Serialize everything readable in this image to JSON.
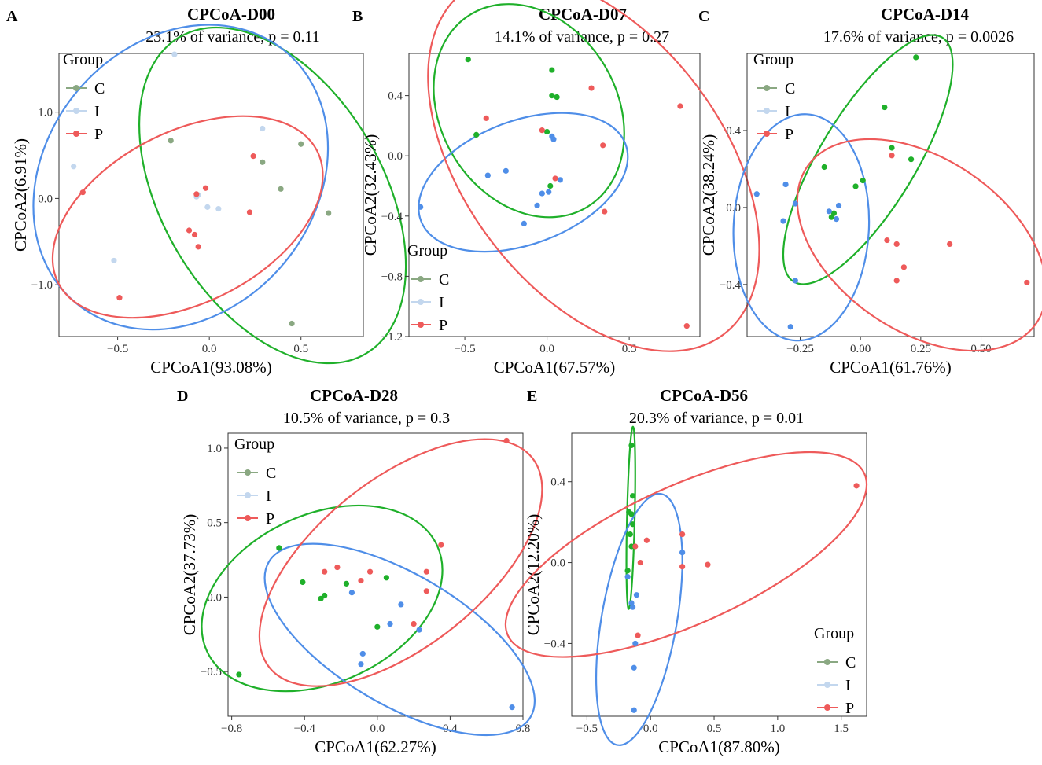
{
  "figure": {
    "colors": {
      "C": "#8aa882",
      "I": "#c3d7ee",
      "P": "#ee5a5a"
    },
    "ellipse_colors": {
      "C": "#1fb02a",
      "I": "#4f8ee8",
      "P": "#ee5a5a"
    },
    "legend_title": "Group",
    "legend_groups": [
      "C",
      "I",
      "P"
    ]
  },
  "chart_data": [
    {
      "type": "scatter",
      "panel": "A",
      "title": "CPCoA-D00",
      "subtitle": "23.1% of variance, p = 0.11",
      "xlabel": "CPCoA1(93.08%)",
      "ylabel": "CPCoA2(6.91%)",
      "xlim": [
        -0.82,
        0.84
      ],
      "ylim": [
        -1.6,
        1.68
      ],
      "xticks": [
        -0.5,
        0.0,
        0.5
      ],
      "xtick_labels": [
        "−0.5",
        "0.0",
        "0.5"
      ],
      "yticks": [
        -1.0,
        0.0,
        1.0
      ],
      "ytick_labels": [
        "−1.0",
        "0.0",
        "1.0"
      ],
      "legend_position": "top-left",
      "series": [
        {
          "name": "C",
          "ellipse": true,
          "x": [
            -0.21,
            0.5,
            0.29,
            0.39,
            0.65,
            0.45
          ],
          "y": [
            0.67,
            0.63,
            0.42,
            0.11,
            -0.17,
            -1.45
          ]
        },
        {
          "name": "I",
          "ellipse": true,
          "x": [
            -0.19,
            -0.74,
            0.29,
            -0.06,
            -0.07,
            -0.01,
            0.05,
            -0.52
          ],
          "y": [
            1.67,
            0.37,
            0.81,
            0.04,
            0.02,
            -0.1,
            -0.12,
            -0.72
          ]
        },
        {
          "name": "P",
          "ellipse": true,
          "x": [
            0.24,
            -0.69,
            -0.02,
            -0.07,
            0.22,
            -0.11,
            -0.08,
            -0.06,
            -0.49
          ],
          "y": [
            0.49,
            0.07,
            0.12,
            0.05,
            -0.16,
            -0.37,
            -0.42,
            -0.56,
            -1.15
          ]
        }
      ]
    },
    {
      "type": "scatter",
      "panel": "B",
      "title": "CPCoA-D07",
      "subtitle": "14.1% of variance, p = 0.27",
      "xlabel": "CPCoA1(67.57%)",
      "ylabel": "CPCoA2(32.43%)",
      "xlim": [
        -0.84,
        0.93
      ],
      "ylim": [
        -1.2,
        0.68
      ],
      "xticks": [
        -0.5,
        0.0,
        0.5
      ],
      "xtick_labels": [
        "−0.5",
        "0.0",
        "0.5"
      ],
      "yticks": [
        -1.2,
        -0.8,
        -0.4,
        0.0,
        0.4
      ],
      "ytick_labels": [
        "−1.2",
        "−0.8",
        "−0.4",
        "0.0",
        "0.4"
      ],
      "legend_position": "bottom-left",
      "series": [
        {
          "name": "C",
          "ellipse": true,
          "x": [
            -0.48,
            0.03,
            0.03,
            0.06,
            -0.43,
            0.0,
            0.02
          ],
          "y": [
            0.64,
            0.57,
            0.4,
            0.39,
            0.14,
            0.16,
            -0.2
          ]
        },
        {
          "name": "I",
          "ellipse": true,
          "x": [
            -0.77,
            -0.36,
            -0.25,
            -0.14,
            0.03,
            0.04,
            -0.03,
            0.01,
            0.08,
            -0.06
          ],
          "y": [
            -0.34,
            -0.13,
            -0.1,
            -0.45,
            0.13,
            0.11,
            -0.25,
            -0.24,
            -0.16,
            -0.33
          ]
        },
        {
          "name": "P",
          "ellipse": true,
          "x": [
            0.27,
            0.81,
            -0.37,
            -0.03,
            0.34,
            0.05,
            0.35,
            0.85
          ],
          "y": [
            0.45,
            0.33,
            0.25,
            0.17,
            0.07,
            -0.15,
            -0.37,
            -1.13
          ]
        }
      ]
    },
    {
      "type": "scatter",
      "panel": "C",
      "title": "CPCoA-D14",
      "subtitle": "17.6% of variance, p = 0.0026",
      "xlabel": "CPCoA1(61.76%)",
      "ylabel": "CPCoA2(38.24%)",
      "xlim": [
        -0.47,
        0.72
      ],
      "ylim": [
        -0.67,
        0.8
      ],
      "xticks": [
        -0.25,
        0.0,
        0.25,
        0.5
      ],
      "xtick_labels": [
        "−0.25",
        "0.00",
        "0.25",
        "0.50"
      ],
      "yticks": [
        -0.4,
        0.0,
        0.4
      ],
      "ytick_labels": [
        "−0.4",
        "0.0",
        "0.4"
      ],
      "legend_position": "top-left",
      "series": [
        {
          "name": "C",
          "ellipse": true,
          "x": [
            0.23,
            0.1,
            0.13,
            0.21,
            0.01,
            -0.02,
            -0.15,
            -0.11,
            -0.12
          ],
          "y": [
            0.78,
            0.52,
            0.31,
            0.25,
            0.14,
            0.11,
            0.21,
            -0.03,
            -0.05
          ]
        },
        {
          "name": "I",
          "ellipse": true,
          "x": [
            -0.43,
            -0.31,
            -0.27,
            -0.32,
            -0.09,
            -0.13,
            -0.1,
            -0.27,
            -0.29
          ],
          "y": [
            0.07,
            0.12,
            0.02,
            -0.07,
            0.01,
            -0.02,
            -0.06,
            -0.38,
            -0.62
          ]
        },
        {
          "name": "P",
          "ellipse": true,
          "x": [
            0.13,
            0.11,
            0.15,
            0.37,
            0.18,
            0.15,
            0.69
          ],
          "y": [
            0.27,
            -0.17,
            -0.19,
            -0.19,
            -0.31,
            -0.38,
            -0.39
          ]
        }
      ]
    },
    {
      "type": "scatter",
      "panel": "D",
      "title": "CPCoA-D28",
      "subtitle": "10.5% of variance, p = 0.3",
      "xlabel": "CPCoA1(62.27%)",
      "ylabel": "CPCoA2(37.73%)",
      "xlim": [
        -0.82,
        0.8
      ],
      "ylim": [
        -0.8,
        1.1
      ],
      "xticks": [
        -0.8,
        -0.4,
        0.0,
        0.4,
        0.8
      ],
      "xtick_labels": [
        "−0.8",
        "−0.4",
        "0.0",
        "0.4",
        "0.8"
      ],
      "yticks": [
        -0.5,
        0.0,
        0.5,
        1.0
      ],
      "ytick_labels": [
        "−0.5",
        "0.0",
        "0.5",
        "1.0"
      ],
      "legend_position": "top-left",
      "series": [
        {
          "name": "C",
          "ellipse": true,
          "x": [
            -0.54,
            -0.41,
            -0.17,
            -0.29,
            -0.31,
            0.05,
            0.0,
            -0.76
          ],
          "y": [
            0.33,
            0.1,
            0.09,
            0.01,
            -0.01,
            0.13,
            -0.2,
            -0.52
          ]
        },
        {
          "name": "I",
          "ellipse": true,
          "x": [
            -0.14,
            0.13,
            0.07,
            0.23,
            -0.08,
            -0.09,
            0.74
          ],
          "y": [
            0.03,
            -0.05,
            -0.18,
            -0.22,
            -0.38,
            -0.45,
            -0.74
          ]
        },
        {
          "name": "P",
          "ellipse": true,
          "x": [
            0.71,
            0.35,
            0.27,
            -0.22,
            -0.29,
            -0.09,
            -0.04,
            0.27,
            0.2
          ],
          "y": [
            1.05,
            0.35,
            0.17,
            0.2,
            0.17,
            0.11,
            0.17,
            0.04,
            -0.18
          ]
        }
      ]
    },
    {
      "type": "scatter",
      "panel": "E",
      "title": "CPCoA-D56",
      "subtitle": "20.3% of variance, p = 0.01",
      "xlabel": "CPCoA1(87.80%)",
      "ylabel": "CPCoA2(12.20%)",
      "xlim": [
        -0.62,
        1.7
      ],
      "ylim": [
        -0.76,
        0.64
      ],
      "xticks": [
        -0.5,
        0.0,
        0.5,
        1.0,
        1.5
      ],
      "xtick_labels": [
        "−0.5",
        "0.0",
        "0.5",
        "1.0",
        "1.5"
      ],
      "yticks": [
        -0.4,
        0.0,
        0.4
      ],
      "ytick_labels": [
        "−0.4",
        "0.0",
        "0.4"
      ],
      "legend_position": "bottom-right",
      "series": [
        {
          "name": "C",
          "ellipse": true,
          "x": [
            -0.15,
            -0.14,
            -0.17,
            -0.15,
            -0.14,
            -0.16,
            -0.15,
            -0.18
          ],
          "y": [
            0.58,
            0.33,
            0.25,
            0.24,
            0.19,
            0.14,
            0.08,
            -0.04
          ]
        },
        {
          "name": "I",
          "ellipse": true,
          "x": [
            0.25,
            -0.18,
            -0.15,
            -0.14,
            -0.11,
            -0.12,
            -0.13,
            -0.13
          ],
          "y": [
            0.05,
            -0.07,
            -0.2,
            -0.22,
            -0.16,
            -0.4,
            -0.52,
            -0.73
          ]
        },
        {
          "name": "P",
          "ellipse": true,
          "x": [
            1.62,
            0.25,
            -0.03,
            -0.12,
            -0.08,
            0.25,
            0.45,
            -0.1
          ],
          "y": [
            0.38,
            0.14,
            0.11,
            0.08,
            0.0,
            -0.02,
            -0.01,
            -0.36
          ]
        }
      ]
    }
  ]
}
